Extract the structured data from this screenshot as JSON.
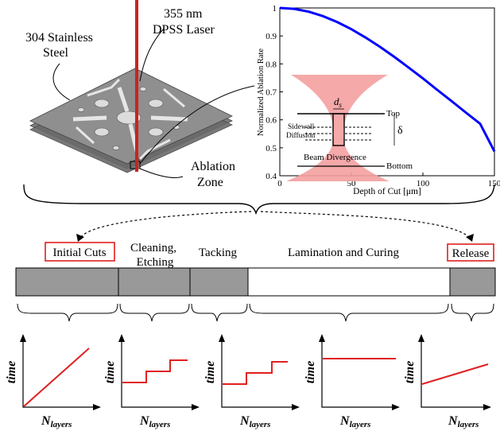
{
  "top_left": {
    "material_label_line1": "304 Stainless",
    "material_label_line2": "Steel",
    "laser_label_line1": "355 nm",
    "laser_label_line2": "DPSS Laser",
    "zone_label_line1": "Ablation",
    "zone_label_line2": "Zone"
  },
  "chart_data": {
    "type": "line",
    "title": "",
    "xlabel": "Depth of Cut [μm]",
    "ylabel": "Normalized Ablation Rate",
    "xlim": [
      0,
      150
    ],
    "ylim": [
      0.4,
      1.0
    ],
    "xticks": [
      "0",
      "50",
      "100",
      "150"
    ],
    "yticks": [
      "0.4",
      "0.5",
      "0.6",
      "0.7",
      "0.8",
      "0.9",
      "1"
    ],
    "grid": false,
    "series": [
      {
        "color": "#0000ff",
        "x": [
          0,
          10,
          20,
          30,
          40,
          50,
          60,
          70,
          80,
          90,
          100,
          110,
          120,
          130,
          140,
          150
        ],
        "y": [
          1.0,
          0.997,
          0.987,
          0.971,
          0.95,
          0.924,
          0.894,
          0.861,
          0.825,
          0.787,
          0.748,
          0.707,
          0.667,
          0.626,
          0.586,
          0.487
        ]
      }
    ],
    "inset": {
      "ds_label": "d",
      "ds_sub": "s",
      "top_label": "Top",
      "bottom_label": "Bottom",
      "delta_label": "δ",
      "sidewall_line1": "Sidewall",
      "sidewall_line2": "Diffusion",
      "beam_label": "Beam Divergence"
    }
  },
  "timeline": {
    "stages": [
      {
        "label": "Initial Cuts",
        "highlighted": true,
        "filled": true
      },
      {
        "label_line1": "Cleaning,",
        "label_line2": "Etching",
        "highlighted": false,
        "filled": true
      },
      {
        "label": "Tacking",
        "highlighted": false,
        "filled": true
      },
      {
        "label": "Lamination and Curing",
        "highlighted": false,
        "filled": false
      },
      {
        "label": "Release",
        "highlighted": true,
        "filled": true
      }
    ]
  },
  "mini_plots": {
    "ylabel": "time",
    "xlabel_main": "N",
    "xlabel_sub": "layers",
    "shapes": [
      "linear",
      "staircase",
      "staircase",
      "flat",
      "linear-offset"
    ]
  },
  "colors": {
    "laser": "#cc2222",
    "curve": "#0000ff",
    "beam": "#f4a0a0",
    "highlight_box": "#e02020",
    "bar_fill": "#999999",
    "mini_line": "#e02020"
  }
}
